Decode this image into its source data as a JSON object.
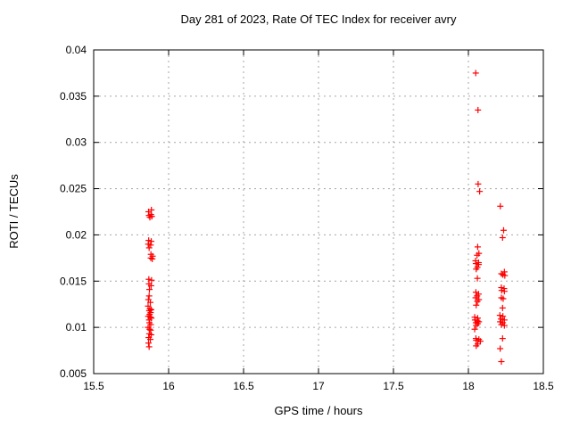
{
  "chart_data": {
    "type": "scatter",
    "title": "Day 281 of 2023, Rate Of TEC Index for receiver avry",
    "xlabel": "GPS time / hours",
    "ylabel": "ROTI / TECUs",
    "xlim": [
      15.5,
      18.5
    ],
    "ylim": [
      0.005,
      0.04
    ],
    "xticks": [
      15.5,
      16,
      16.5,
      17,
      17.5,
      18,
      18.5
    ],
    "xtick_labels": [
      "15.5",
      "16",
      "16.5",
      "17",
      "17.5",
      "18",
      "18.5"
    ],
    "yticks": [
      0.005,
      0.01,
      0.015,
      0.02,
      0.025,
      0.03,
      0.035,
      0.04
    ],
    "ytick_labels": [
      "0.005",
      "0.01",
      "0.015",
      "0.02",
      "0.025",
      "0.03",
      "0.035",
      "0.04"
    ],
    "grid": true,
    "legend": "none",
    "marker": {
      "shape": "plus",
      "color": "#ff0000",
      "size": 7
    },
    "series": [
      {
        "name": "roti",
        "points": [
          [
            15.885,
            0.0227
          ],
          [
            15.866,
            0.0225
          ],
          [
            15.882,
            0.0222
          ],
          [
            15.869,
            0.0221
          ],
          [
            15.888,
            0.022
          ],
          [
            15.875,
            0.0219
          ],
          [
            15.867,
            0.0194
          ],
          [
            15.884,
            0.0193
          ],
          [
            15.864,
            0.019
          ],
          [
            15.88,
            0.0189
          ],
          [
            15.87,
            0.0186
          ],
          [
            15.882,
            0.0179
          ],
          [
            15.893,
            0.0177
          ],
          [
            15.881,
            0.0175
          ],
          [
            15.891,
            0.0174
          ],
          [
            15.868,
            0.0152
          ],
          [
            15.886,
            0.0151
          ],
          [
            15.869,
            0.0147
          ],
          [
            15.883,
            0.0145
          ],
          [
            15.872,
            0.0141
          ],
          [
            15.87,
            0.0134
          ],
          [
            15.865,
            0.013
          ],
          [
            15.878,
            0.0127
          ],
          [
            15.863,
            0.0123
          ],
          [
            15.875,
            0.012
          ],
          [
            15.884,
            0.0119
          ],
          [
            15.871,
            0.0118
          ],
          [
            15.88,
            0.0116
          ],
          [
            15.873,
            0.0114
          ],
          [
            15.864,
            0.0112
          ],
          [
            15.879,
            0.0111
          ],
          [
            15.885,
            0.011
          ],
          [
            15.87,
            0.0108
          ],
          [
            15.872,
            0.0105
          ],
          [
            15.881,
            0.0103
          ],
          [
            15.863,
            0.01
          ],
          [
            15.873,
            0.0098
          ],
          [
            15.88,
            0.0097
          ],
          [
            15.871,
            0.0093
          ],
          [
            15.884,
            0.0092
          ],
          [
            15.867,
            0.0089
          ],
          [
            15.878,
            0.0087
          ],
          [
            15.866,
            0.0083
          ],
          [
            15.87,
            0.0079
          ],
          [
            18.049,
            0.0375
          ],
          [
            18.064,
            0.0335
          ],
          [
            18.065,
            0.0255
          ],
          [
            18.075,
            0.0247
          ],
          [
            18.062,
            0.0187
          ],
          [
            18.07,
            0.018
          ],
          [
            18.058,
            0.0178
          ],
          [
            18.048,
            0.0172
          ],
          [
            18.068,
            0.017
          ],
          [
            18.05,
            0.0169
          ],
          [
            18.068,
            0.0168
          ],
          [
            18.06,
            0.0165
          ],
          [
            18.052,
            0.0163
          ],
          [
            18.06,
            0.0153
          ],
          [
            18.05,
            0.0138
          ],
          [
            18.068,
            0.0136
          ],
          [
            18.058,
            0.0134
          ],
          [
            18.048,
            0.0132
          ],
          [
            18.07,
            0.013
          ],
          [
            18.06,
            0.0128
          ],
          [
            18.052,
            0.0124
          ],
          [
            18.042,
            0.0111
          ],
          [
            18.062,
            0.011
          ],
          [
            18.044,
            0.0108
          ],
          [
            18.06,
            0.0107
          ],
          [
            18.07,
            0.0106
          ],
          [
            18.05,
            0.0105
          ],
          [
            18.062,
            0.0104
          ],
          [
            18.052,
            0.0102
          ],
          [
            18.042,
            0.0098
          ],
          [
            18.05,
            0.0088
          ],
          [
            18.07,
            0.0087
          ],
          [
            18.052,
            0.0086
          ],
          [
            18.08,
            0.0085
          ],
          [
            18.062,
            0.0082
          ],
          [
            18.052,
            0.008
          ],
          [
            18.213,
            0.0231
          ],
          [
            18.235,
            0.0205
          ],
          [
            18.228,
            0.0197
          ],
          [
            18.24,
            0.016
          ],
          [
            18.22,
            0.0158
          ],
          [
            18.23,
            0.0157
          ],
          [
            18.243,
            0.0156
          ],
          [
            18.22,
            0.0143
          ],
          [
            18.238,
            0.0142
          ],
          [
            18.222,
            0.014
          ],
          [
            18.24,
            0.0139
          ],
          [
            18.22,
            0.0132
          ],
          [
            18.232,
            0.0131
          ],
          [
            18.228,
            0.0121
          ],
          [
            18.21,
            0.0113
          ],
          [
            18.23,
            0.0112
          ],
          [
            18.218,
            0.0109
          ],
          [
            18.24,
            0.0108
          ],
          [
            18.212,
            0.0106
          ],
          [
            18.23,
            0.0105
          ],
          [
            18.22,
            0.0103
          ],
          [
            18.24,
            0.0102
          ],
          [
            18.228,
            0.0088
          ],
          [
            18.212,
            0.0077
          ],
          [
            18.22,
            0.0063
          ]
        ]
      }
    ]
  },
  "style": {
    "background": "#ffffff",
    "axis_color": "#000000",
    "grid_color": "#a6a6a6",
    "marker_color": "#ff0000",
    "text_color": "#000000"
  }
}
